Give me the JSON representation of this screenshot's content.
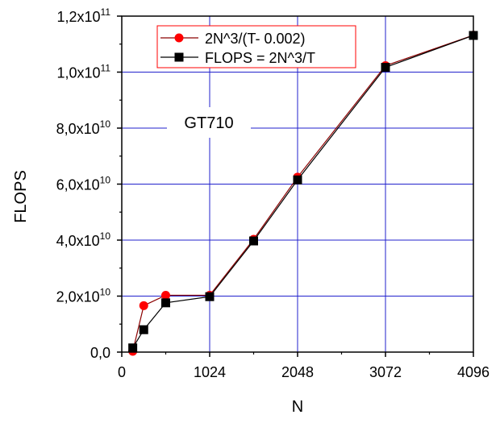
{
  "chart_data": {
    "type": "line",
    "xlabel": "N",
    "ylabel": "FLOPS",
    "xlim": [
      0,
      4096
    ],
    "ylim": [
      0,
      120000000000.0
    ],
    "grid": true,
    "xticks": [
      {
        "value": 0,
        "label": "0"
      },
      {
        "value": 1024,
        "label": "1024"
      },
      {
        "value": 2048,
        "label": "2048"
      },
      {
        "value": 3072,
        "label": "3072"
      },
      {
        "value": 4096,
        "label": "4096"
      }
    ],
    "yticks": [
      {
        "value": 0,
        "mant": "0,0",
        "exp": ""
      },
      {
        "value": 20000000000.0,
        "mant": "2,0x10",
        "exp": "10"
      },
      {
        "value": 40000000000.0,
        "mant": "4,0x10",
        "exp": "10"
      },
      {
        "value": 60000000000.0,
        "mant": "6,0x10",
        "exp": "10"
      },
      {
        "value": 80000000000.0,
        "mant": "8,0x10",
        "exp": "10"
      },
      {
        "value": 100000000000.0,
        "mant": "1,0x10",
        "exp": "11"
      },
      {
        "value": 120000000000.0,
        "mant": "1,2x10",
        "exp": "11"
      }
    ],
    "annotation": "GT710",
    "legend_position": "top-left",
    "series": [
      {
        "name": "2N^3/(T- 0.002)",
        "color": "#ff0000",
        "line_color": "#8b0000",
        "marker": "circle",
        "x": [
          128,
          256,
          512,
          1024,
          1536,
          2048,
          3072,
          4096
        ],
        "y": [
          300000000,
          16600000000,
          20300000000,
          20300000000,
          40300000000,
          62500000000,
          102300000000,
          113200000000
        ]
      },
      {
        "name": "FLOPS = 2N^3/T",
        "color": "#000000",
        "line_color": "#000000",
        "marker": "square",
        "x": [
          128,
          256,
          512,
          1024,
          1536,
          2048,
          3072,
          4096
        ],
        "y": [
          1500000000,
          8000000000,
          17600000000,
          19800000000,
          39700000000,
          61500000000,
          101700000000,
          113100000000
        ]
      }
    ]
  }
}
